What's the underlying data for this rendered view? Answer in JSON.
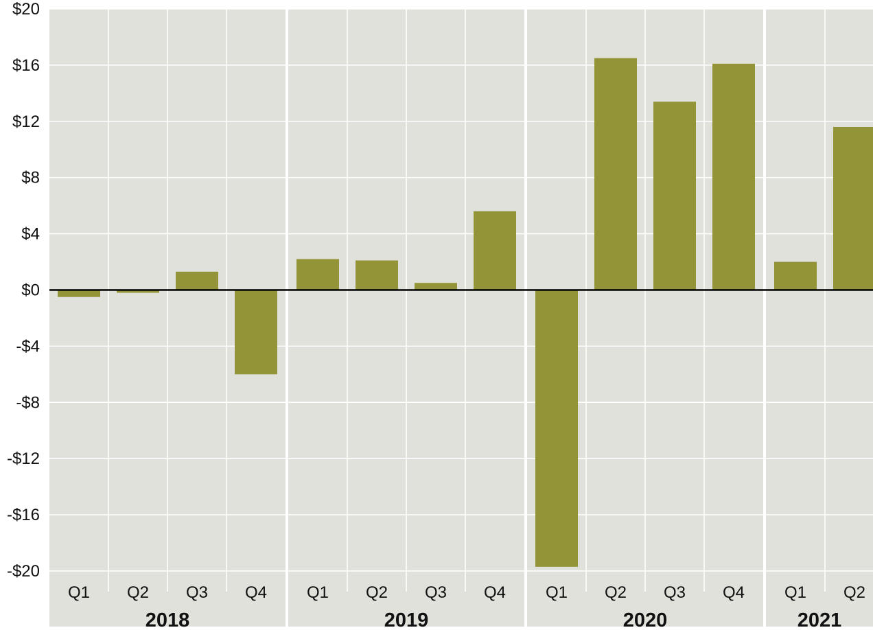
{
  "chart_data": {
    "type": "bar",
    "title": "",
    "xlabel": "",
    "ylabel": "",
    "ylim": [
      -20,
      20
    ],
    "yticks": [
      20,
      16,
      12,
      8,
      4,
      0,
      -4,
      -8,
      -12,
      -16,
      -20
    ],
    "ytick_labels": [
      "$20",
      "$16",
      "$12",
      "$8",
      "$4",
      "$0",
      "-$4",
      "-$8",
      "-$12",
      "-$16",
      "-$20"
    ],
    "grid": true,
    "groups": [
      {
        "label": "2018",
        "categories": [
          "Q1",
          "Q2",
          "Q3",
          "Q4"
        ],
        "values": [
          -0.5,
          -0.2,
          1.3,
          -6.0
        ]
      },
      {
        "label": "2019",
        "categories": [
          "Q1",
          "Q2",
          "Q3",
          "Q4"
        ],
        "values": [
          2.2,
          2.1,
          0.5,
          5.6
        ]
      },
      {
        "label": "2020",
        "categories": [
          "Q1",
          "Q2",
          "Q3",
          "Q4"
        ],
        "values": [
          -19.7,
          16.5,
          13.4,
          16.1
        ]
      },
      {
        "label": "2021",
        "categories": [
          "Q1",
          "Q2"
        ],
        "values": [
          2.0,
          11.6
        ]
      }
    ],
    "colors": {
      "bar": "#939438",
      "plot_background": "#e1e1dc",
      "gridline": "#ffffff",
      "zero_line": "#000000"
    }
  }
}
